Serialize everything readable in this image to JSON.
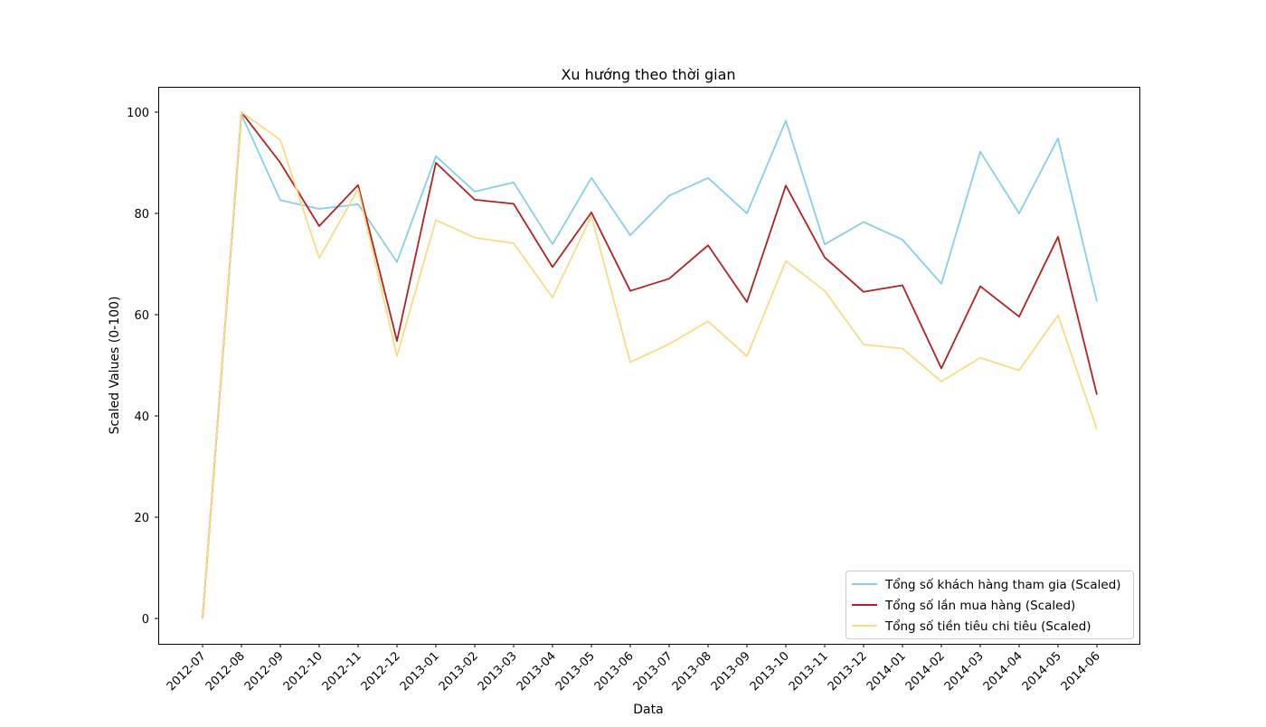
{
  "chart_data": {
    "type": "line",
    "title": "Xu hướng theo thời gian",
    "xlabel": "Data",
    "ylabel": "Scaled Values (0-100)",
    "categories": [
      "2012-07",
      "2012-08",
      "2012-09",
      "2012-10",
      "2012-11",
      "2012-12",
      "2013-01",
      "2013-02",
      "2013-03",
      "2013-04",
      "2013-05",
      "2013-06",
      "2013-07",
      "2013-08",
      "2013-09",
      "2013-10",
      "2013-11",
      "2013-12",
      "2014-01",
      "2014-02",
      "2014-03",
      "2014-04",
      "2014-05",
      "2014-06"
    ],
    "yticks": [
      0,
      20,
      40,
      60,
      80,
      100
    ],
    "ylim": [
      -5,
      105
    ],
    "grid": false,
    "legend_position": "bottom-right",
    "series": [
      {
        "name": "Tổng số khách hàng tham gia (Scaled)",
        "color": "#87ceeb",
        "values": [
          0,
          99.5,
          82.6,
          80.9,
          81.8,
          70.4,
          91.3,
          84.3,
          86.1,
          73.9,
          87.0,
          75.7,
          83.5,
          87.0,
          80.0,
          98.3,
          73.9,
          78.3,
          74.8,
          66.1,
          92.2,
          80.0,
          94.8,
          62.6
        ]
      },
      {
        "name": "Tổng số lần mua hàng (Scaled)",
        "color": "#b22222",
        "values": [
          0,
          100,
          90.0,
          77.5,
          85.6,
          54.8,
          90.0,
          82.7,
          81.9,
          69.4,
          80.2,
          64.7,
          67.1,
          73.7,
          62.5,
          85.5,
          71.3,
          64.5,
          65.8,
          49.4,
          65.6,
          59.6,
          75.4,
          44.2
        ]
      },
      {
        "name": "Tổng số tiền tiêu chi tiêu (Scaled)",
        "color": "#f7dc84",
        "values": [
          0,
          100,
          94.5,
          71.2,
          84.8,
          51.8,
          78.7,
          75.2,
          74.1,
          63.4,
          79.5,
          50.6,
          54.2,
          58.7,
          51.8,
          70.6,
          64.7,
          54.1,
          53.3,
          46.8,
          51.5,
          49.0,
          59.9,
          37.4
        ]
      }
    ]
  }
}
